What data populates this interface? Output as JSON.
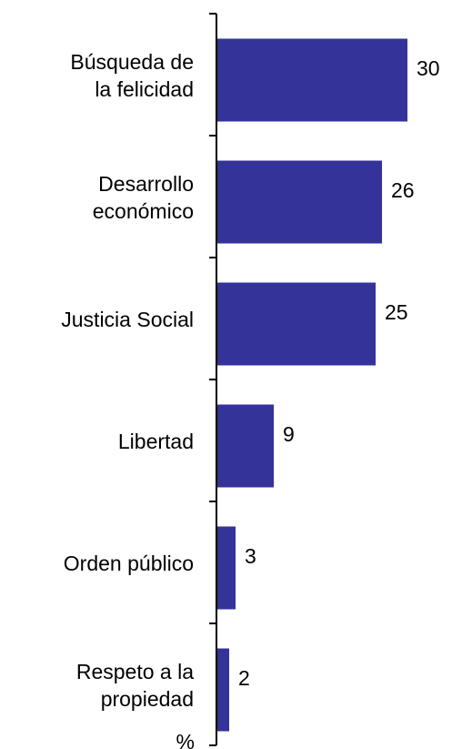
{
  "chart_data": {
    "type": "bar",
    "orientation": "horizontal",
    "categories": [
      [
        "Búsqueda de",
        "la felicidad"
      ],
      [
        "Desarrollo",
        "económico"
      ],
      [
        "Justicia Social"
      ],
      [
        "Libertad"
      ],
      [
        "Orden público"
      ],
      [
        "Respeto a la",
        "propiedad"
      ]
    ],
    "values": [
      30,
      26,
      25,
      9,
      3,
      2
    ],
    "unit_label": "%",
    "xlim": [
      0,
      30
    ],
    "grid": false,
    "legend": "none",
    "bar_color": "#333399",
    "axis_color": "#000000",
    "text_color": "#000000"
  }
}
